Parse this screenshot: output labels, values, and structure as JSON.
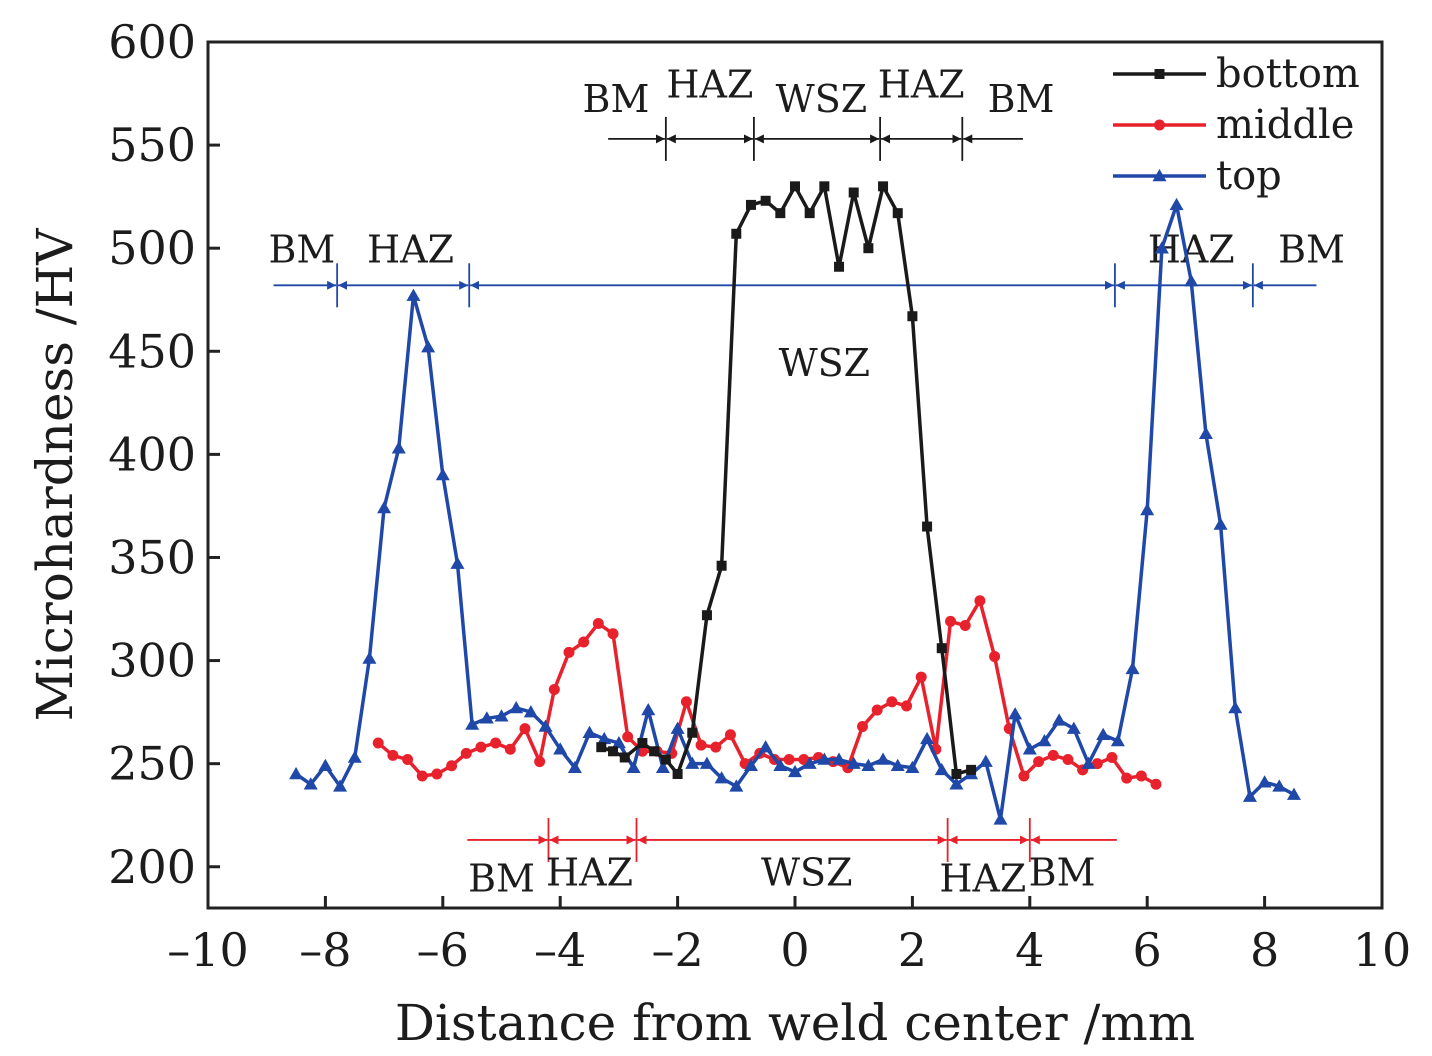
{
  "chart_data": {
    "type": "line",
    "xlabel": "Distance from weld center /mm",
    "ylabel": "Microhardness /HV",
    "xlim": [
      -10,
      10
    ],
    "ylim": [
      180,
      600
    ],
    "xticks": [
      -10,
      -8,
      -6,
      -4,
      -2,
      0,
      2,
      4,
      6,
      8,
      10
    ],
    "xtick_labels": [
      "–10",
      "–8",
      "–6",
      "–4",
      "–2",
      "0",
      "2",
      "4",
      "6",
      "8",
      "10"
    ],
    "yticks": [
      200,
      250,
      300,
      350,
      400,
      450,
      500,
      550,
      600
    ],
    "ytick_labels": [
      "200",
      "250",
      "300",
      "350",
      "400",
      "450",
      "500",
      "550",
      "600"
    ],
    "grid": false,
    "legend_position": "top-right",
    "series": [
      {
        "name": "bottom",
        "color": "#1a1a1a",
        "marker": "square",
        "x": [
          -3.3,
          -3.1,
          -2.9,
          -2.6,
          -2.4,
          -2.2,
          -2.0,
          -1.75,
          -1.5,
          -1.25,
          -1.0,
          -0.75,
          -0.5,
          -0.25,
          0.0,
          0.25,
          0.5,
          0.75,
          1.0,
          1.25,
          1.5,
          1.75,
          2.0,
          2.25,
          2.5,
          2.75,
          3.0
        ],
        "values": [
          258,
          256,
          253,
          260,
          256,
          252,
          245,
          265,
          322,
          346,
          507,
          521,
          523,
          517,
          530,
          517,
          530,
          491,
          527,
          500,
          530,
          517,
          467,
          365,
          306,
          245,
          247
        ]
      },
      {
        "name": "middle",
        "color": "#e8222c",
        "marker": "circle",
        "x": [
          -7.1,
          -6.85,
          -6.6,
          -6.35,
          -6.1,
          -5.85,
          -5.6,
          -5.35,
          -5.1,
          -4.85,
          -4.6,
          -4.35,
          -4.1,
          -3.85,
          -3.6,
          -3.35,
          -3.1,
          -2.85,
          -2.6,
          -2.35,
          -2.1,
          -1.85,
          -1.6,
          -1.35,
          -1.1,
          -0.85,
          -0.6,
          -0.35,
          -0.1,
          0.15,
          0.4,
          0.65,
          0.9,
          1.15,
          1.4,
          1.65,
          1.9,
          2.15,
          2.4,
          2.65,
          2.9,
          3.15,
          3.4,
          3.65,
          3.9,
          4.15,
          4.4,
          4.65,
          4.9,
          5.15,
          5.4,
          5.65,
          5.9,
          6.15
        ],
        "values": [
          260,
          254,
          252,
          244,
          245,
          249,
          255,
          258,
          260,
          257,
          267,
          251,
          286,
          304,
          309,
          318,
          313,
          263,
          256,
          256,
          255,
          280,
          259,
          258,
          264,
          250,
          255,
          252,
          252,
          252,
          253,
          251,
          248,
          268,
          276,
          280,
          278,
          292,
          257,
          319,
          317,
          329,
          302,
          267,
          244,
          251,
          254,
          252,
          247,
          250,
          253,
          243,
          244,
          240
        ]
      },
      {
        "name": "top",
        "color": "#1f48a8",
        "marker": "triangle",
        "x": [
          -8.5,
          -8.25,
          -8.0,
          -7.75,
          -7.5,
          -7.25,
          -7.0,
          -6.75,
          -6.5,
          -6.25,
          -6.0,
          -5.75,
          -5.5,
          -5.25,
          -5.0,
          -4.75,
          -4.5,
          -4.25,
          -4.0,
          -3.75,
          -3.5,
          -3.25,
          -3.0,
          -2.75,
          -2.5,
          -2.25,
          -2.0,
          -1.75,
          -1.5,
          -1.25,
          -1.0,
          -0.75,
          -0.5,
          -0.25,
          0.0,
          0.25,
          0.5,
          0.75,
          1.0,
          1.25,
          1.5,
          1.75,
          2.0,
          2.25,
          2.5,
          2.75,
          3.0,
          3.25,
          3.5,
          3.75,
          4.0,
          4.25,
          4.5,
          4.75,
          5.0,
          5.25,
          5.5,
          5.75,
          6.0,
          6.25,
          6.5,
          6.75,
          7.0,
          7.25,
          7.5,
          7.75,
          8.0,
          8.25,
          8.5
        ],
        "values": [
          245,
          240,
          249,
          239,
          253,
          301,
          374,
          403,
          477,
          452,
          390,
          347,
          269,
          272,
          273,
          277,
          275,
          268,
          257,
          248,
          265,
          262,
          260,
          248,
          276,
          248,
          267,
          250,
          250,
          243,
          239,
          249,
          258,
          249,
          246,
          250,
          252,
          252,
          250,
          249,
          252,
          249,
          248,
          262,
          247,
          240,
          245,
          251,
          223,
          274,
          257,
          261,
          271,
          267,
          250,
          264,
          261,
          296,
          373,
          500,
          521,
          484,
          410,
          366,
          277,
          234,
          241,
          239,
          235
        ]
      }
    ],
    "zone_annotations": [
      {
        "series": "bottom",
        "level": 553,
        "extent": [
          -3.2,
          3.9
        ],
        "boundaries": [
          -2.2,
          -0.7,
          1.45,
          2.85
        ],
        "labels": [
          {
            "text": "BM",
            "x": -3.05,
            "y": 566
          },
          {
            "text": "HAZ",
            "x": -1.45,
            "y": 573
          },
          {
            "text": "WSZ",
            "x": 0.45,
            "y": 566
          },
          {
            "text": "HAZ",
            "x": 2.15,
            "y": 573
          },
          {
            "text": "BM",
            "x": 3.85,
            "y": 566
          }
        ]
      },
      {
        "series": "top",
        "level": 482,
        "extent": [
          -8.9,
          8.9
        ],
        "boundaries": [
          -7.8,
          -5.55,
          5.45,
          7.8
        ],
        "labels": [
          {
            "text": "BM",
            "x": -8.4,
            "y": 493
          },
          {
            "text": "HAZ",
            "x": -6.55,
            "y": 493
          },
          {
            "text": "WSZ",
            "x": 0.5,
            "y": 438
          },
          {
            "text": "HAZ",
            "x": 6.75,
            "y": 493
          },
          {
            "text": "BM",
            "x": 8.8,
            "y": 493
          }
        ]
      },
      {
        "series": "middle",
        "level": 213,
        "extent": [
          -5.6,
          5.5
        ],
        "boundaries": [
          -4.2,
          -2.7,
          2.6,
          4.0
        ],
        "labels": [
          {
            "text": "BM",
            "x": -5.0,
            "y": 188
          },
          {
            "text": "HAZ",
            "x": -3.5,
            "y": 191
          },
          {
            "text": "WSZ",
            "x": 0.2,
            "y": 191
          },
          {
            "text": "HAZ",
            "x": 3.2,
            "y": 188
          },
          {
            "text": "BM",
            "x": 4.55,
            "y": 191
          }
        ]
      }
    ]
  }
}
